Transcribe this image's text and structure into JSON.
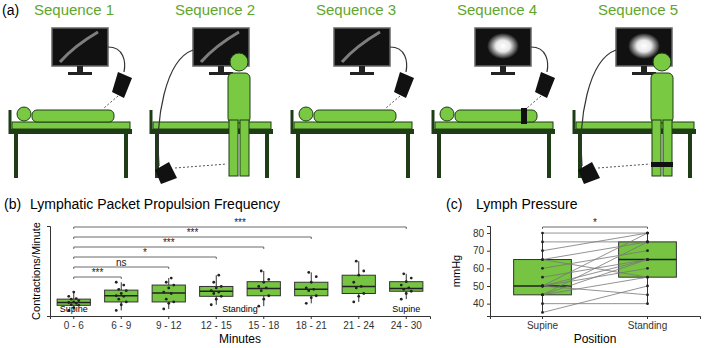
{
  "diagram": {
    "label": "(a)",
    "sequences": [
      "Sequence 1",
      "Sequence 2",
      "Sequence 3",
      "Sequence 4",
      "Sequence 5"
    ]
  },
  "chart_data": [
    {
      "type": "box",
      "label": "(b)",
      "title": "Lymphatic Packet Propulsion Frequency",
      "x_label": "Minutes",
      "y_label": "Contractions/Minute",
      "categories": [
        "0 - 6",
        "6 - 9",
        "9 - 12",
        "12 - 15",
        "15 - 18",
        "18 - 21",
        "21 - 24",
        "24 - 30"
      ],
      "boxes": [
        {
          "low": 0.2,
          "q1": 0.38,
          "median": 0.48,
          "q3": 0.6,
          "high": 0.85
        },
        {
          "low": 0.2,
          "q1": 0.5,
          "median": 0.72,
          "q3": 0.92,
          "high": 1.2
        },
        {
          "low": 0.25,
          "q1": 0.5,
          "median": 0.82,
          "q3": 1.1,
          "high": 1.35
        },
        {
          "low": 0.4,
          "q1": 0.7,
          "median": 0.88,
          "q3": 1.05,
          "high": 1.45
        },
        {
          "low": 0.35,
          "q1": 0.72,
          "median": 0.98,
          "q3": 1.22,
          "high": 1.6
        },
        {
          "low": 0.45,
          "q1": 0.72,
          "median": 0.95,
          "q3": 1.2,
          "high": 1.55
        },
        {
          "low": 0.5,
          "q1": 0.8,
          "median": 1.05,
          "q3": 1.45,
          "high": 1.95
        },
        {
          "low": 0.6,
          "q1": 0.88,
          "median": 0.98,
          "q3": 1.22,
          "high": 1.5
        }
      ],
      "points": [
        [
          0.2,
          0.3,
          0.38,
          0.4,
          0.45,
          0.48,
          0.5,
          0.55,
          0.6,
          0.62,
          0.7,
          0.85
        ],
        [
          0.2,
          0.4,
          0.5,
          0.6,
          0.7,
          0.72,
          0.8,
          0.9,
          0.95,
          1.1,
          1.2
        ],
        [
          0.25,
          0.45,
          0.5,
          0.6,
          0.8,
          0.85,
          1.0,
          1.1,
          1.2,
          1.35
        ],
        [
          0.4,
          0.6,
          0.7,
          0.8,
          0.85,
          0.9,
          1.0,
          1.05,
          1.2,
          1.45
        ],
        [
          0.35,
          0.6,
          0.72,
          0.9,
          1.0,
          1.05,
          1.2,
          1.3,
          1.6
        ],
        [
          0.45,
          0.65,
          0.72,
          0.9,
          0.95,
          1.0,
          1.2,
          1.4,
          1.55
        ],
        [
          0.5,
          0.7,
          0.8,
          1.0,
          1.05,
          1.2,
          1.45,
          1.6,
          1.95
        ],
        [
          0.6,
          0.8,
          0.88,
          0.95,
          1.0,
          1.1,
          1.22,
          1.35,
          1.5
        ]
      ],
      "ylim": [
        0,
        3.2
      ],
      "tick_labels": "x",
      "color": "#76c442",
      "annotations": [
        {
          "text": "***",
          "from": "0 - 6",
          "to": "6 - 9"
        },
        {
          "text": "ns",
          "from": "0 - 6",
          "to": "9 - 12"
        },
        {
          "text": "*",
          "from": "0 - 6",
          "to": "12 - 15"
        },
        {
          "text": "***",
          "from": "0 - 6",
          "to": "15 - 18"
        },
        {
          "text": "***",
          "from": "0 - 6",
          "to": "18 - 21"
        },
        {
          "text": "***",
          "from": "0 - 6",
          "to": "24 - 30"
        }
      ],
      "phases": [
        {
          "text": "Supine",
          "from": "0 - 6",
          "to": "0 - 6"
        },
        {
          "text": "Standing",
          "from": "6 - 9",
          "to": "21 - 24"
        },
        {
          "text": "Supine",
          "from": "24 - 30",
          "to": "24 - 30"
        }
      ]
    },
    {
      "type": "paired_box",
      "label": "(c)",
      "title": "Lymph Pressure",
      "x_label": "Position",
      "y_label": "mmHg",
      "categories": [
        "Supine",
        "Standing"
      ],
      "boxes": [
        {
          "low": 35,
          "q1": 45,
          "median": 50,
          "q3": 65,
          "high": 80
        },
        {
          "low": 40,
          "q1": 55,
          "median": 65,
          "q3": 75,
          "high": 80
        }
      ],
      "points": [
        [
          35,
          40,
          45,
          45,
          45,
          50,
          50,
          50,
          50,
          55,
          60,
          65,
          65,
          70,
          75,
          80
        ],
        [
          50,
          40,
          55,
          65,
          75,
          60,
          65,
          45,
          80,
          65,
          70,
          75,
          55,
          80,
          75,
          80
        ]
      ],
      "ylim": [
        33,
        84
      ],
      "yticks": [
        40,
        50,
        60,
        70,
        80
      ],
      "color": "#76c442",
      "annotations": [
        {
          "text": "*",
          "from": "Supine",
          "to": "Standing"
        }
      ]
    }
  ]
}
